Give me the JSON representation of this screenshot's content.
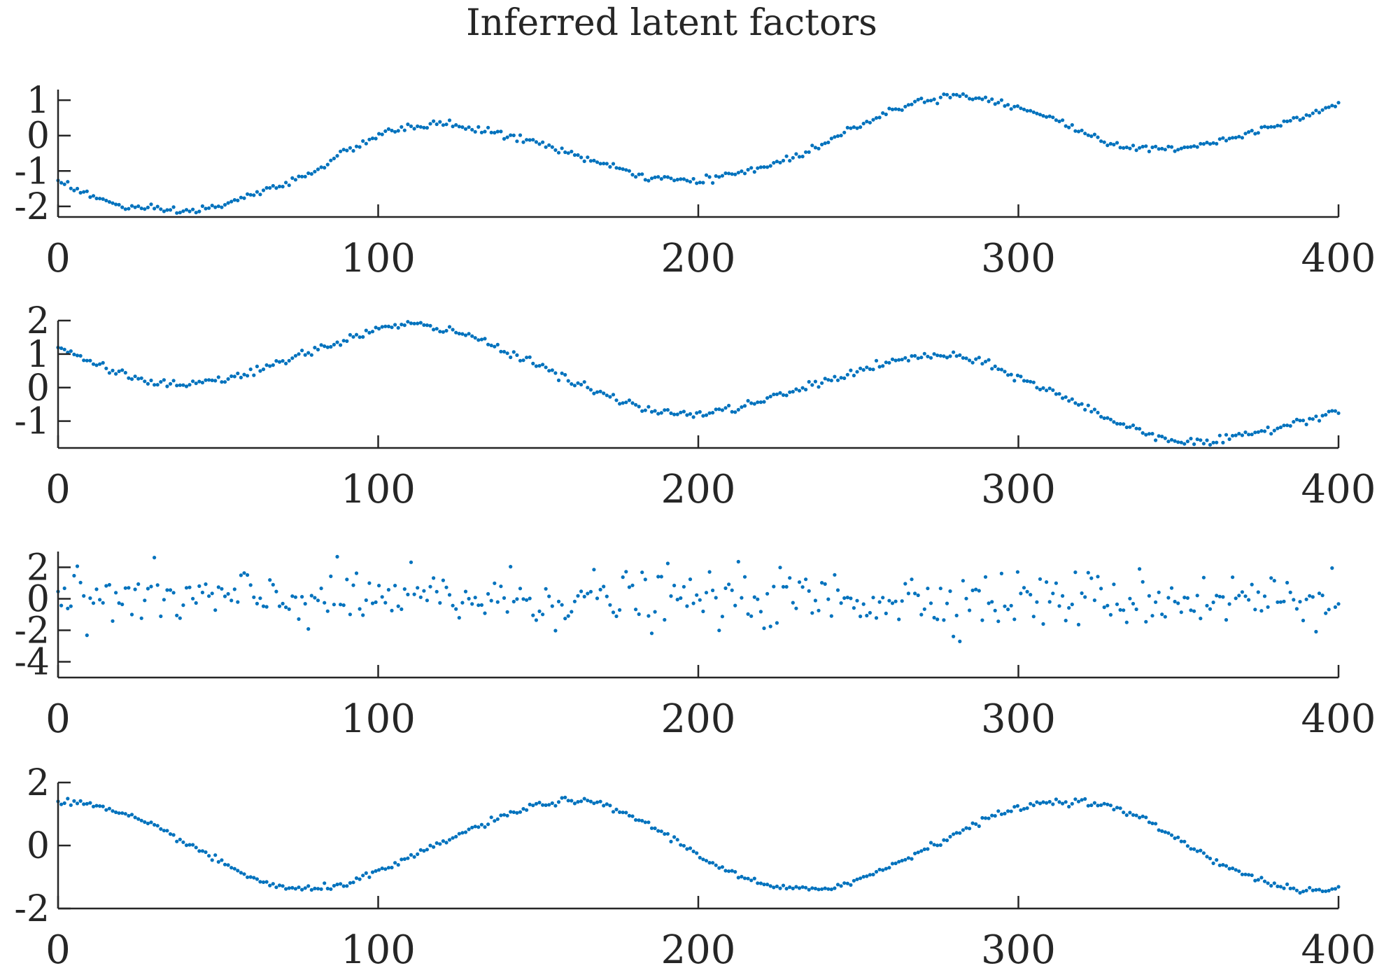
{
  "chart_data": {
    "type": "scatter",
    "title": "Inferred latent factors",
    "marker_color": "#0072BD",
    "text_color": "#262626",
    "subplots": [
      {
        "xlim": [
          0,
          400
        ],
        "ylim": [
          -2.3,
          1.3
        ],
        "xticks": [
          0,
          100,
          200,
          300,
          400
        ],
        "yticks": [
          -2,
          -1,
          0,
          1
        ],
        "xtick_labels": [
          "0",
          "100",
          "200",
          "300",
          "400"
        ],
        "ytick_labels": [
          "-2",
          "-1",
          "0",
          "1"
        ],
        "trend": {
          "x": [
            0,
            10,
            20,
            30,
            40,
            50,
            60,
            70,
            80,
            90,
            100,
            110,
            120,
            130,
            140,
            150,
            160,
            170,
            180,
            190,
            200,
            210,
            220,
            230,
            240,
            250,
            260,
            270,
            280,
            290,
            300,
            310,
            320,
            330,
            340,
            350,
            360,
            370,
            380,
            390,
            400
          ],
          "y": [
            -1.25,
            -1.7,
            -2.0,
            -2.1,
            -2.15,
            -2.0,
            -1.7,
            -1.4,
            -1.0,
            -0.45,
            0.0,
            0.25,
            0.35,
            0.2,
            0.0,
            -0.2,
            -0.5,
            -0.8,
            -1.1,
            -1.25,
            -1.3,
            -1.1,
            -0.9,
            -0.6,
            -0.2,
            0.3,
            0.7,
            1.0,
            1.15,
            1.05,
            0.8,
            0.5,
            0.1,
            -0.25,
            -0.4,
            -0.35,
            -0.2,
            0.0,
            0.3,
            0.6,
            0.9
          ]
        },
        "noise": 0.05,
        "n_points": 400
      },
      {
        "xlim": [
          0,
          400
        ],
        "ylim": [
          -1.8,
          2.0
        ],
        "xticks": [
          0,
          100,
          200,
          300,
          400
        ],
        "yticks": [
          -1,
          0,
          1,
          2
        ],
        "xtick_labels": [
          "0",
          "100",
          "200",
          "300",
          "400"
        ],
        "ytick_labels": [
          "-1",
          "0",
          "1",
          "2"
        ],
        "trend": {
          "x": [
            0,
            10,
            20,
            30,
            40,
            50,
            60,
            70,
            80,
            90,
            100,
            110,
            120,
            130,
            140,
            150,
            160,
            170,
            180,
            190,
            200,
            210,
            220,
            230,
            240,
            250,
            260,
            270,
            280,
            290,
            300,
            310,
            320,
            330,
            340,
            350,
            360,
            370,
            380,
            390,
            400
          ],
          "y": [
            1.2,
            0.8,
            0.4,
            0.15,
            0.05,
            0.2,
            0.45,
            0.75,
            1.1,
            1.45,
            1.75,
            1.9,
            1.75,
            1.5,
            1.1,
            0.7,
            0.2,
            -0.2,
            -0.55,
            -0.75,
            -0.8,
            -0.65,
            -0.4,
            -0.1,
            0.2,
            0.5,
            0.75,
            0.95,
            0.95,
            0.7,
            0.3,
            -0.1,
            -0.55,
            -1.0,
            -1.35,
            -1.6,
            -1.65,
            -1.45,
            -1.2,
            -0.95,
            -0.65
          ]
        },
        "noise": 0.06,
        "n_points": 400
      },
      {
        "xlim": [
          0,
          400
        ],
        "ylim": [
          -5,
          3
        ],
        "xticks": [
          0,
          100,
          200,
          300,
          400
        ],
        "yticks": [
          -4,
          -2,
          0,
          2
        ],
        "xtick_labels": [
          "0",
          "100",
          "200",
          "300",
          "400"
        ],
        "ytick_labels": [
          "-4",
          "-2",
          "0",
          "2"
        ],
        "trend": {
          "x": [
            0,
            400
          ],
          "y": [
            0,
            0
          ]
        },
        "noise": 0.9,
        "n_points": 400
      },
      {
        "xlim": [
          0,
          400
        ],
        "ylim": [
          -2,
          2
        ],
        "xticks": [
          0,
          100,
          200,
          300,
          400
        ],
        "yticks": [
          -2,
          0,
          2
        ],
        "xtick_labels": [
          "0",
          "100",
          "200",
          "300",
          "400"
        ],
        "ytick_labels": [
          "-2",
          "0",
          "2"
        ],
        "trend": {
          "x": [
            0,
            10,
            20,
            30,
            40,
            50,
            60,
            70,
            80,
            90,
            100,
            110,
            120,
            130,
            140,
            150,
            160,
            170,
            180,
            190,
            200,
            210,
            220,
            230,
            240,
            250,
            260,
            270,
            280,
            290,
            300,
            310,
            320,
            330,
            340,
            350,
            360,
            370,
            380,
            390,
            400
          ],
          "y": [
            1.45,
            1.3,
            1.0,
            0.6,
            0.1,
            -0.5,
            -1.0,
            -1.35,
            -1.4,
            -1.2,
            -0.85,
            -0.4,
            0.1,
            0.55,
            0.95,
            1.3,
            1.45,
            1.3,
            0.9,
            0.35,
            -0.3,
            -0.85,
            -1.25,
            -1.4,
            -1.35,
            -1.1,
            -0.65,
            -0.15,
            0.35,
            0.85,
            1.2,
            1.4,
            1.4,
            1.2,
            0.8,
            0.2,
            -0.4,
            -0.9,
            -1.25,
            -1.45,
            -1.4
          ]
        },
        "noise": 0.05,
        "n_points": 400
      }
    ]
  }
}
